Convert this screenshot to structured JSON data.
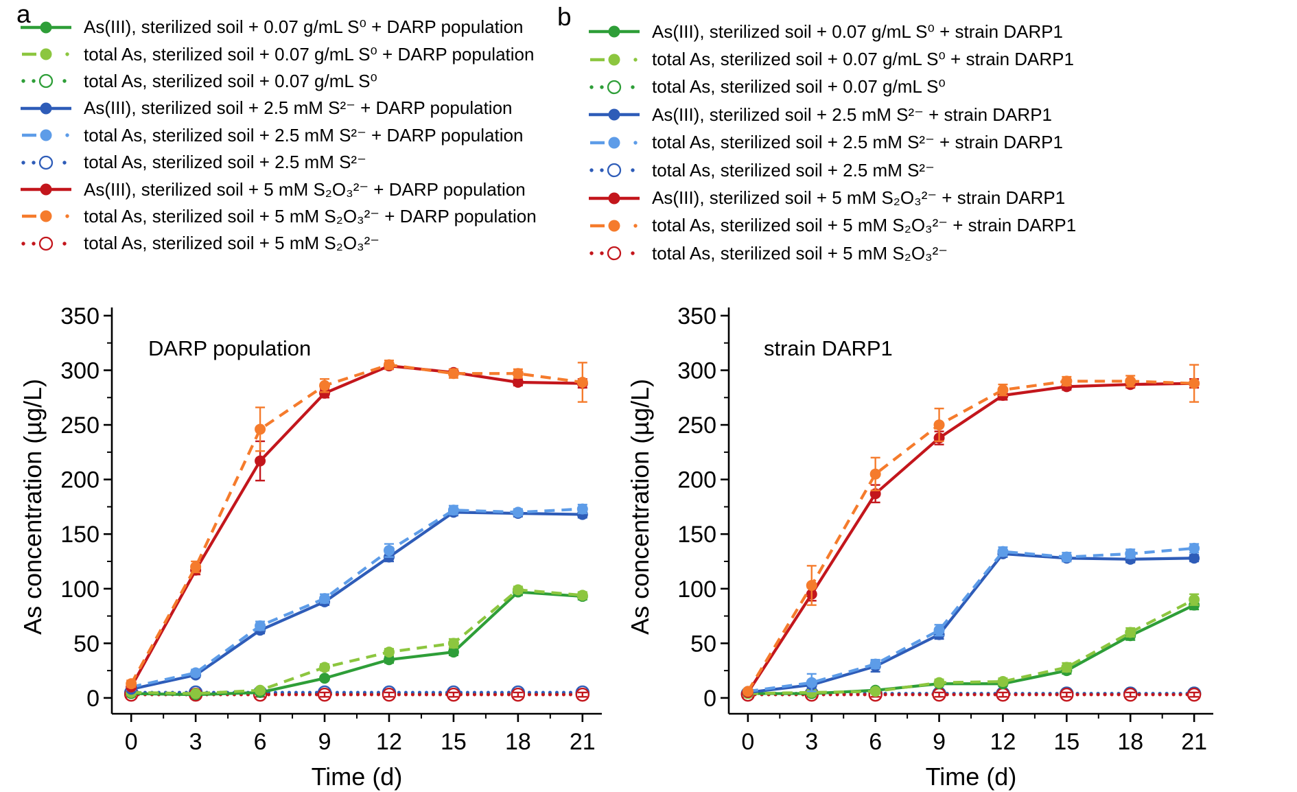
{
  "figure": {
    "background": "#ffffff"
  },
  "colors": {
    "green": "#2e9e38",
    "light_green": "#8cc63f",
    "blue": "#2e5cb8",
    "light_blue": "#5d9ce8",
    "red": "#c3161c",
    "orange": "#f57b2c",
    "axis": "#000000",
    "text": "#000000"
  },
  "panels": [
    {
      "letter": "a",
      "plot_label": "DARP population"
    },
    {
      "letter": "b",
      "plot_label": "strain DARP1"
    }
  ],
  "chart_data": [
    {
      "type": "line",
      "title": "DARP population",
      "xlabel": "Time (d)",
      "ylabel": "As concentration (µg/L)",
      "x": [
        0,
        3,
        6,
        9,
        12,
        15,
        18,
        21
      ],
      "x_ticks": [
        0,
        3,
        6,
        9,
        12,
        15,
        18,
        21
      ],
      "y_ticks": [
        0,
        50,
        100,
        150,
        200,
        250,
        300,
        350
      ],
      "xlim": [
        0,
        21
      ],
      "ylim": [
        0,
        350
      ],
      "grid": false,
      "legend_position": "top-left",
      "series": [
        {
          "name": "asIII-S0-darp",
          "legend_label": "As(III), sterilized soil + 0.07 g/mL S⁰ + DARP population",
          "color": "#2e9e38",
          "line": "solid",
          "marker": "filled",
          "values": [
            4,
            3,
            5,
            18,
            35,
            42,
            97,
            93
          ],
          "errors": [
            1,
            1,
            1,
            2,
            3,
            3,
            3,
            3
          ]
        },
        {
          "name": "totalAs-S0-darp",
          "legend_label": "total As, sterilized soil + 0.07 g/mL S⁰ + DARP population",
          "color": "#8cc63f",
          "line": "dash",
          "marker": "filled",
          "values": [
            5,
            4,
            7,
            28,
            42,
            50,
            99,
            94
          ],
          "errors": [
            1,
            1,
            2,
            3,
            3,
            4,
            3,
            3
          ]
        },
        {
          "name": "totalAs-S0",
          "legend_label": "total As, sterilized soil + 0.07 g/mL S⁰",
          "color": "#2e9e38",
          "line": "dot",
          "marker": "open",
          "values": [
            4,
            4,
            4,
            4,
            4,
            4,
            4,
            4
          ],
          "errors": [
            2,
            2,
            2,
            2,
            2,
            2,
            2,
            2
          ]
        },
        {
          "name": "asIII-S2-darp",
          "legend_label": "As(III), sterilized soil + 2.5 mM S²⁻ + DARP population",
          "color": "#2e5cb8",
          "line": "solid",
          "marker": "filled",
          "values": [
            8,
            21,
            62,
            88,
            129,
            170,
            169,
            168
          ],
          "errors": [
            2,
            2,
            3,
            3,
            4,
            3,
            3,
            3
          ]
        },
        {
          "name": "totalAs-S2-darp",
          "legend_label": "total As, sterilized soil + 2.5 mM S²⁻ + DARP population",
          "color": "#5d9ce8",
          "line": "dash",
          "marker": "filled",
          "values": [
            10,
            23,
            66,
            91,
            135,
            172,
            170,
            173
          ],
          "errors": [
            3,
            3,
            4,
            4,
            6,
            4,
            3,
            4
          ]
        },
        {
          "name": "totalAs-S2",
          "legend_label": "total As, sterilized soil + 2.5 mM S²⁻",
          "color": "#2e5cb8",
          "line": "dot",
          "marker": "open",
          "values": [
            5,
            5,
            5,
            5,
            5,
            5,
            5,
            5
          ],
          "errors": [
            2,
            2,
            2,
            2,
            2,
            2,
            2,
            2
          ]
        },
        {
          "name": "asIII-S2O3-darp",
          "legend_label": "As(III), sterilized soil + 5 mM S₂O₃²⁻ + DARP population",
          "color": "#c3161c",
          "line": "solid",
          "marker": "filled",
          "values": [
            10,
            117,
            217,
            279,
            304,
            298,
            289,
            288
          ],
          "errors": [
            2,
            4,
            18,
            4,
            3,
            3,
            3,
            4
          ]
        },
        {
          "name": "totalAs-S2O3-darp",
          "legend_label": "total As, sterilized soil + 5 mM S₂O₃²⁻ + DARP population",
          "color": "#f57b2c",
          "line": "dash",
          "marker": "filled",
          "values": [
            13,
            120,
            246,
            286,
            305,
            297,
            297,
            289
          ],
          "errors": [
            3,
            5,
            20,
            6,
            4,
            4,
            4,
            18
          ]
        },
        {
          "name": "totalAs-S2O3",
          "legend_label": "total As, sterilized soil + 5 mM S₂O₃²⁻",
          "color": "#c3161c",
          "line": "dot",
          "marker": "open",
          "values": [
            3,
            3,
            3,
            3,
            3,
            3,
            3,
            3
          ],
          "errors": [
            2,
            2,
            2,
            2,
            2,
            2,
            2,
            2
          ]
        }
      ]
    },
    {
      "type": "line",
      "title": "strain DARP1",
      "xlabel": "Time (d)",
      "ylabel": "As concentration (µg/L)",
      "x": [
        0,
        3,
        6,
        9,
        12,
        15,
        18,
        21
      ],
      "x_ticks": [
        0,
        3,
        6,
        9,
        12,
        15,
        18,
        21
      ],
      "y_ticks": [
        0,
        50,
        100,
        150,
        200,
        250,
        300,
        350
      ],
      "xlim": [
        0,
        21
      ],
      "ylim": [
        0,
        350
      ],
      "grid": false,
      "legend_position": "top-left",
      "series": [
        {
          "name": "asIII-S0-darp1",
          "legend_label": "As(III), sterilized soil + 0.07 g/mL S⁰ + strain DARP1",
          "color": "#2e9e38",
          "line": "solid",
          "marker": "filled",
          "values": [
            4,
            4,
            7,
            13,
            13,
            25,
            57,
            85
          ],
          "errors": [
            1,
            1,
            2,
            2,
            2,
            3,
            4,
            4
          ]
        },
        {
          "name": "totalAs-S0-darp1",
          "legend_label": "total As, sterilized soil + 0.07 g/mL S⁰ + strain DARP1",
          "color": "#8cc63f",
          "line": "dash",
          "marker": "filled",
          "values": [
            4,
            5,
            6,
            14,
            15,
            28,
            60,
            90
          ],
          "errors": [
            1,
            2,
            2,
            3,
            3,
            4,
            4,
            5
          ]
        },
        {
          "name": "totalAs-S0-b",
          "legend_label": "total As, sterilized soil + 0.07 g/mL S⁰",
          "color": "#2e9e38",
          "line": "dot",
          "marker": "open",
          "values": [
            4,
            4,
            4,
            4,
            4,
            4,
            4,
            4
          ],
          "errors": [
            2,
            2,
            2,
            2,
            2,
            2,
            2,
            2
          ]
        },
        {
          "name": "asIII-S2-darp1",
          "legend_label": "As(III), sterilized soil + 2.5 mM S²⁻ + strain DARP1",
          "color": "#2e5cb8",
          "line": "solid",
          "marker": "filled",
          "values": [
            5,
            12,
            29,
            58,
            132,
            128,
            127,
            128
          ],
          "errors": [
            2,
            3,
            5,
            4,
            3,
            3,
            3,
            3
          ]
        },
        {
          "name": "totalAs-S2-darp1",
          "legend_label": "total As, sterilized soil + 2.5 mM S²⁻ + strain DARP1",
          "color": "#5d9ce8",
          "line": "dash",
          "marker": "filled",
          "values": [
            6,
            14,
            31,
            62,
            134,
            129,
            132,
            137
          ],
          "errors": [
            2,
            8,
            4,
            5,
            4,
            4,
            4,
            4
          ]
        },
        {
          "name": "totalAs-S2-b",
          "legend_label": "total As, sterilized soil + 2.5 mM S²⁻",
          "color": "#2e5cb8",
          "line": "dot",
          "marker": "open",
          "values": [
            4,
            4,
            4,
            4,
            4,
            4,
            4,
            4
          ],
          "errors": [
            2,
            2,
            2,
            2,
            2,
            2,
            2,
            2
          ]
        },
        {
          "name": "asIII-S2O3-darp1",
          "legend_label": "As(III), sterilized soil + 5 mM S₂O₃²⁻ + strain DARP1",
          "color": "#c3161c",
          "line": "solid",
          "marker": "filled",
          "values": [
            5,
            95,
            187,
            238,
            277,
            285,
            287,
            288
          ],
          "errors": [
            2,
            6,
            8,
            6,
            4,
            3,
            3,
            4
          ]
        },
        {
          "name": "totalAs-S2O3-darp1",
          "legend_label": "total As, sterilized soil + 5 mM S₂O₃²⁻ + strain DARP1",
          "color": "#f57b2c",
          "line": "dash",
          "marker": "filled",
          "values": [
            6,
            103,
            205,
            250,
            282,
            290,
            290,
            288
          ],
          "errors": [
            2,
            18,
            15,
            15,
            5,
            4,
            5,
            17
          ]
        },
        {
          "name": "totalAs-S2O3-b",
          "legend_label": "total As, sterilized soil + 5 mM S₂O₃²⁻",
          "color": "#c3161c",
          "line": "dot",
          "marker": "open",
          "values": [
            3,
            3,
            3,
            3,
            3,
            3,
            3,
            3
          ],
          "errors": [
            2,
            2,
            2,
            2,
            2,
            2,
            2,
            2
          ]
        }
      ]
    }
  ]
}
